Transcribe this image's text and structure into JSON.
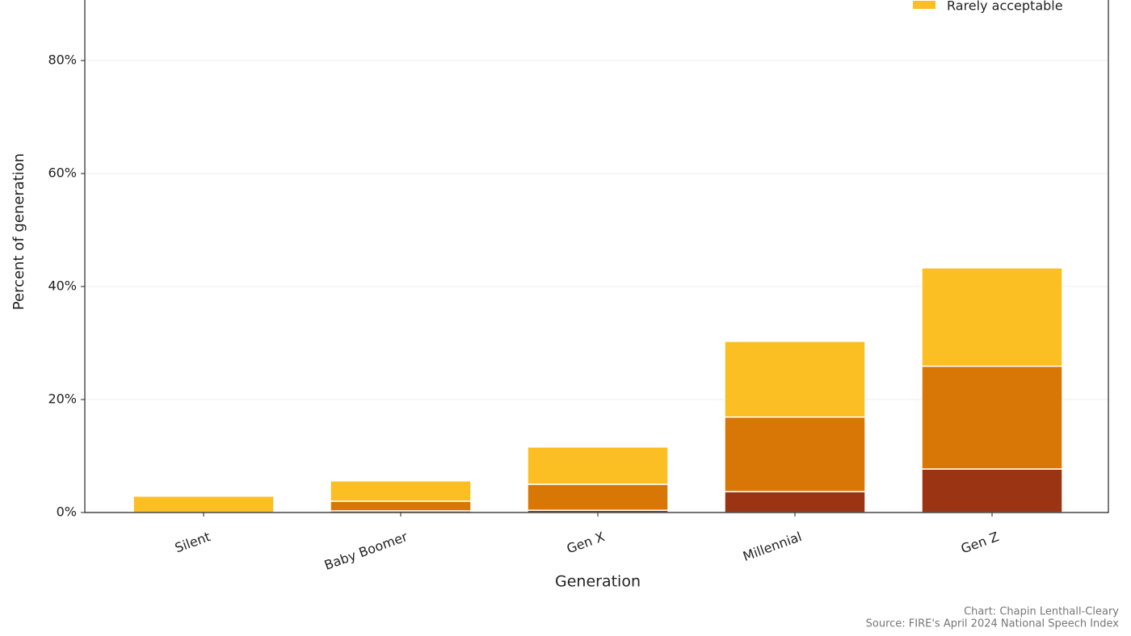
{
  "chart_data": {
    "type": "stacked_bar",
    "x_label": "Generation",
    "y_label": "Percent of generation",
    "categories": [
      "Silent",
      "Baby Boomer",
      "Gen X",
      "Millennial",
      "Gen Z"
    ],
    "series": [
      {
        "color": "#9a3412",
        "values": [
          0,
          0.3,
          0.4,
          3.7,
          7.7
        ]
      },
      {
        "color": "#d97706",
        "values": [
          0,
          1.7,
          4.6,
          13.2,
          18.2
        ]
      },
      {
        "name": "Rarely acceptable",
        "color": "#fbbf24",
        "values": [
          2.9,
          3.6,
          6.6,
          13.4,
          17.4
        ]
      }
    ],
    "ylim": [
      0,
      90
    ],
    "yticks": [
      {
        "value": 0,
        "label": "0%"
      },
      {
        "value": 20,
        "label": "20%"
      },
      {
        "value": 40,
        "label": "40%"
      },
      {
        "value": 60,
        "label": "60%"
      },
      {
        "value": 80,
        "label": "80%"
      }
    ],
    "grid": true,
    "legend": "upper right",
    "credits": [
      "Chart: Chapin Lenthall-Cleary",
      "Source: FIRE's April 2024 National Speech Index"
    ]
  }
}
